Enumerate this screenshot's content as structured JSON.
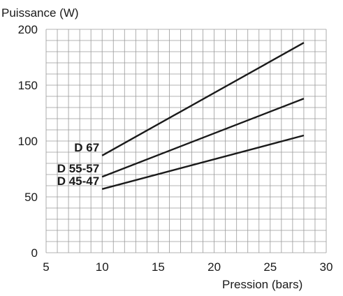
{
  "chart_data": {
    "type": "line",
    "title": "",
    "ylabel": "Puissance (W)",
    "xlabel": "Pression (bars)",
    "xlim": [
      5,
      30
    ],
    "ylim": [
      0,
      200
    ],
    "x_ticks": [
      "5",
      "10",
      "15",
      "20",
      "25",
      "30"
    ],
    "y_ticks": [
      "0",
      "50",
      "100",
      "150",
      "200"
    ],
    "grid": true,
    "series": [
      {
        "name": "D 67",
        "x": [
          10,
          28
        ],
        "y": [
          87,
          188
        ]
      },
      {
        "name": "D 55-57",
        "x": [
          10,
          28
        ],
        "y": [
          68,
          138
        ]
      },
      {
        "name": "D 45-47",
        "x": [
          10,
          28
        ],
        "y": [
          57,
          105
        ]
      }
    ]
  }
}
